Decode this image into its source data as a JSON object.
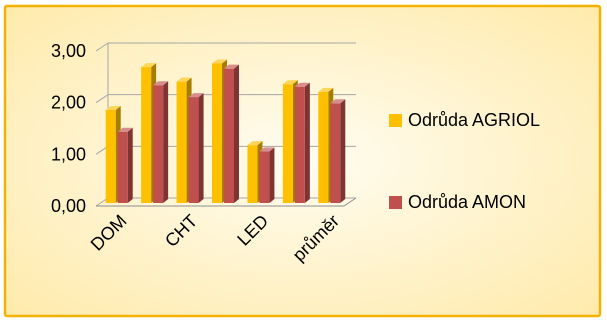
{
  "chart_data": {
    "type": "bar",
    "style": "3d-clustered-column",
    "categories": [
      "DOM",
      "",
      "CHT",
      "",
      "LED",
      "",
      "průměr"
    ],
    "series": [
      {
        "name": "Odrůda AGRIOL",
        "color": "#FFC000",
        "values": [
          1.8,
          2.63,
          2.35,
          2.7,
          1.12,
          2.3,
          2.15
        ]
      },
      {
        "name": "Odrůda AMON",
        "color": "#C0504D",
        "values": [
          1.38,
          2.28,
          2.05,
          2.6,
          1.0,
          2.25,
          1.93
        ]
      }
    ],
    "ylim": [
      0,
      3
    ],
    "yticks": [
      "0,00",
      "1,00",
      "2,00",
      "3,00"
    ],
    "title": "",
    "xlabel": "",
    "ylabel": "",
    "grid": true,
    "legend_position": "right",
    "background_color": "#FFF2CC",
    "border_color": "#F5B400"
  }
}
